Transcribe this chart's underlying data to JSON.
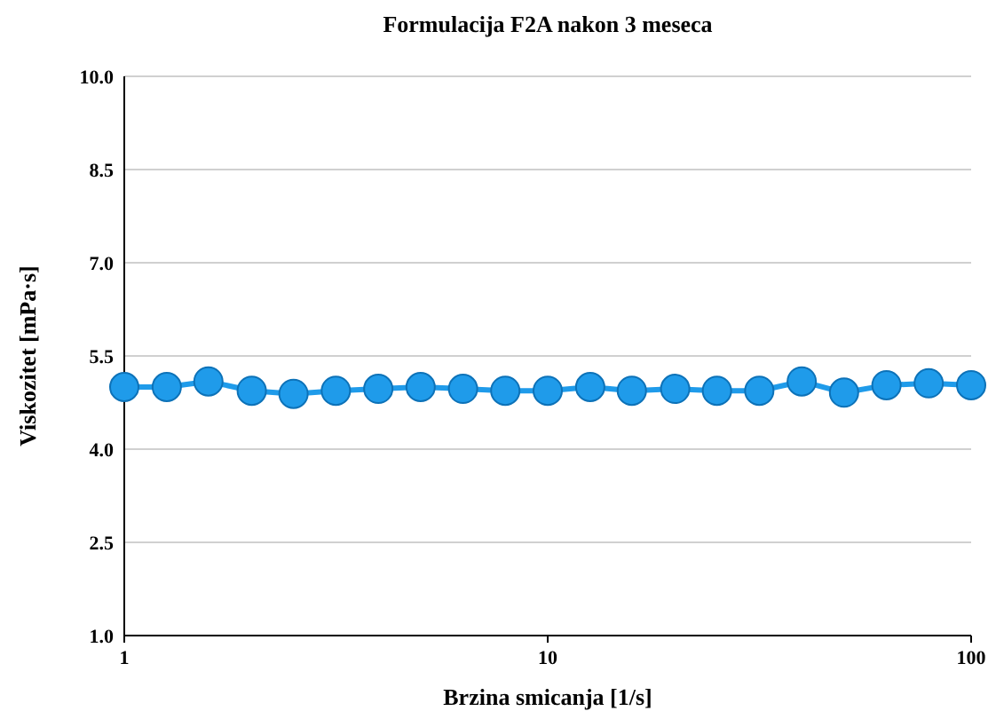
{
  "chart_data": {
    "type": "line",
    "title": "Formulacija F2A nakon 3 meseca",
    "xlabel": "Brzina smicanja [1/s]",
    "ylabel": "Viskozitet [mPa·s]",
    "x": [
      1,
      1.26,
      1.58,
      2,
      2.51,
      3.16,
      3.98,
      5.01,
      6.31,
      7.94,
      10,
      12.6,
      15.8,
      20,
      25.1,
      31.6,
      39.8,
      50.1,
      63.1,
      79.4,
      100
    ],
    "series": [
      {
        "color": "#1f9bea",
        "values": [
          5.0,
          5.0,
          5.09,
          4.94,
          4.89,
          4.94,
          4.97,
          5.0,
          4.97,
          4.94,
          4.94,
          5.0,
          4.94,
          4.97,
          4.94,
          4.94,
          5.09,
          4.91,
          5.03,
          5.06,
          5.03
        ]
      }
    ],
    "log": "x",
    "xlim": [
      1,
      100
    ],
    "xticks": [
      1,
      10,
      100
    ],
    "ylim": [
      1,
      10
    ],
    "yticks": [
      {
        "value": 1,
        "label": "1.0"
      },
      {
        "value": 2.5,
        "label": "2.5"
      },
      {
        "value": 4,
        "label": "4.0"
      },
      {
        "value": 5.5,
        "label": "5.5"
      },
      {
        "value": 7,
        "label": "7.0"
      },
      {
        "value": 8.5,
        "label": "8.5"
      },
      {
        "value": 10,
        "label": "10.0"
      }
    ],
    "grid": "y",
    "marker": "circle",
    "line_style": "solid"
  }
}
